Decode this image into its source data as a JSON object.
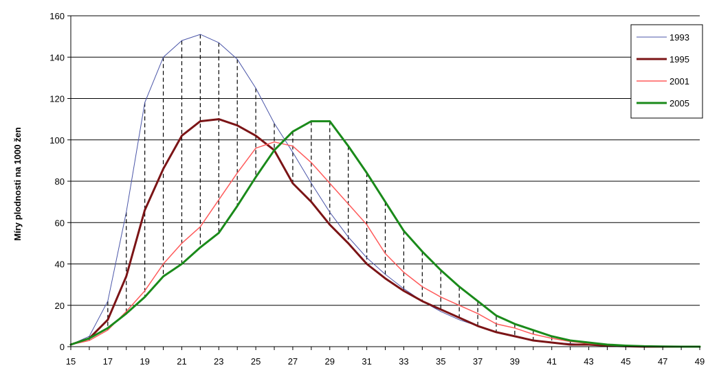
{
  "chart_data": {
    "type": "line",
    "title": "",
    "xlabel": "",
    "ylabel": "Míry plodnosti na 1000 žen",
    "xlim": [
      15,
      49
    ],
    "ylim": [
      0,
      160
    ],
    "x_ticks": [
      15,
      17,
      19,
      21,
      23,
      25,
      27,
      29,
      31,
      33,
      35,
      37,
      39,
      41,
      43,
      45,
      47,
      49
    ],
    "y_ticks": [
      0,
      20,
      40,
      60,
      80,
      100,
      120,
      140,
      160
    ],
    "grid": "horizontal",
    "legend_position": "top-right",
    "drop_lines": "dashed vertical lines at each age between the highest and lowest series value",
    "x": [
      15,
      16,
      17,
      18,
      19,
      20,
      21,
      22,
      23,
      24,
      25,
      26,
      27,
      28,
      29,
      30,
      31,
      32,
      33,
      34,
      35,
      36,
      37,
      38,
      39,
      40,
      41,
      42,
      43,
      44,
      45,
      46,
      47,
      48,
      49
    ],
    "series": [
      {
        "name": "1993",
        "color": "#4a55a8",
        "width": 1,
        "values": [
          1,
          5,
          22,
          65,
          118,
          140,
          148,
          151,
          147,
          139,
          125,
          108,
          94,
          79,
          65,
          53,
          43,
          35,
          28,
          22,
          17,
          13,
          10,
          7,
          5,
          3,
          2,
          1.5,
          1,
          0.5,
          0.3,
          0.1,
          0,
          0,
          0
        ]
      },
      {
        "name": "1995",
        "color": "#7b1416",
        "width": 3,
        "values": [
          1,
          4,
          13,
          34,
          66,
          86,
          102,
          109,
          110,
          107,
          102,
          95,
          79,
          70,
          59,
          50,
          40,
          33,
          27,
          22,
          18,
          14,
          10,
          7,
          5,
          3,
          2,
          1,
          1,
          0.5,
          0.2,
          0,
          0,
          0,
          0
        ]
      },
      {
        "name": "2001",
        "color": "#ff5a5a",
        "width": 1.5,
        "values": [
          1,
          3,
          8,
          17,
          27,
          40,
          50,
          58,
          71,
          84,
          96,
          99,
          97,
          89,
          79,
          69,
          59,
          45,
          36,
          29,
          24,
          20,
          16,
          11,
          9,
          6,
          4,
          2.5,
          1.5,
          1,
          0.5,
          0.2,
          0.1,
          0,
          0
        ]
      },
      {
        "name": "2005",
        "color": "#1a8a1a",
        "width": 3,
        "values": [
          1,
          4,
          9,
          16,
          24,
          34,
          40,
          48,
          55,
          68,
          82,
          95,
          104,
          109,
          109,
          97,
          84,
          70,
          56,
          46,
          37,
          29,
          22,
          15,
          11,
          8,
          5,
          3,
          2,
          1,
          0.5,
          0.2,
          0.1,
          0,
          0
        ]
      }
    ]
  }
}
